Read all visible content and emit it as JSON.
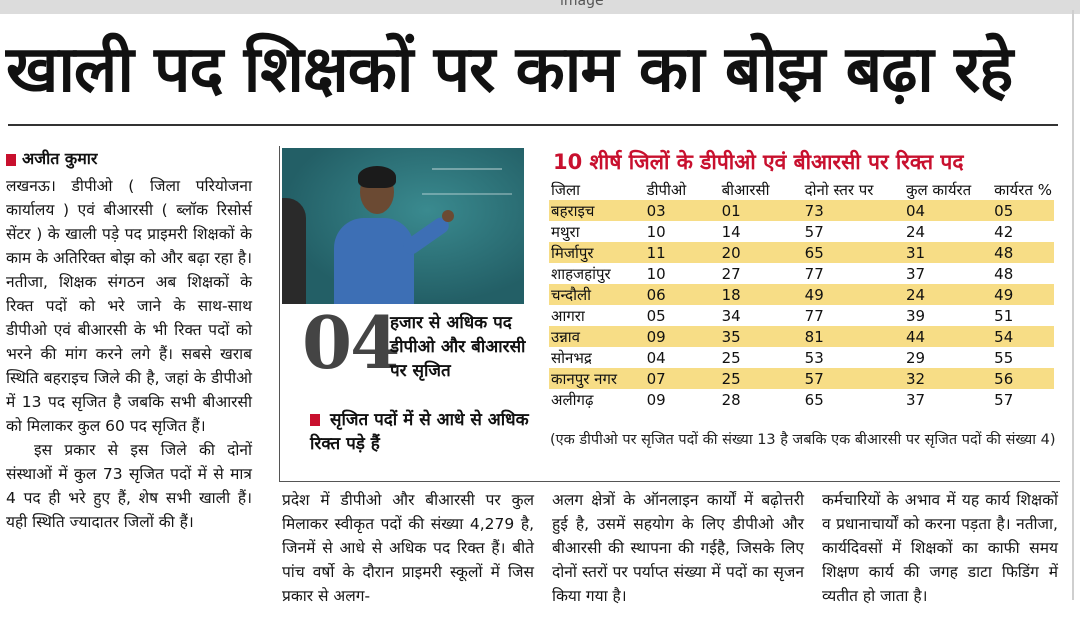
{
  "top_bar": {
    "text": "image"
  },
  "headline": "खाली पद शिक्षकों पर काम का बोझ बढ़ा रहे",
  "byline": "अजीत कुमार",
  "body": {
    "col1_p1": "लखनऊ। डीपीओ ( जिला परियोजना कार्यालय ) एवं बीआरसी ( ब्लॉक रिसोर्स सेंटर ) के खाली पड़े पद प्राइमरी शिक्षकों के काम के अतिरिक्त बोझ को और बढ़ा रहा है। नतीजा, शिक्षक संगठन अब शिक्षकों के रिक्त पदों को भरे जाने के साथ-साथ डीपीओ एवं बीआरसी के भी रिक्त पदों को भरने की मांग करने लगे हैं। सबसे खराब स्थिति बहराइच जिले की है, जहां के डीपीओ में 13 पद सृजित है जबकि सभी बीआरसी को मिलाकर कुल 60 पद सृजित हैं।",
    "col1_p2": "इस प्रकार से इस जिले की दोनों संस्थाओं में कुल 73 सृजित पदों में से मात्र 4 पद ही भरे हुए हैं, शेष सभी खाली हैं। यही स्थिति ज्यादातर जिलों की हैं।",
    "col2": "प्रदेश में डीपीओ और बीआरसी पर कुल मिलाकर स्वीकृत पदों की संख्या 4,279 है, जिनमें से आधे से अधिक पद रिक्त हैं। बीते पांच वर्षो के दौरान प्राइमरी स्कूलों में जिस प्रकार से अलग-",
    "col3": "अलग क्षेत्रों के ऑनलाइन कार्यों में बढ़ोत्तरी हुई है, उसमें सहयोग के लिए डीपीओ और बीआरसी की स्थापना की गईहै, जिसके लिए दोनों स्तरों पर पर्याप्त संख्या में पदों का सृजन किया गया है।",
    "col4": "कर्मचारियों के अभाव में यह कार्य शिक्षकों व प्रधानाचार्यों को करना पड़ता है। नतीजा, कार्यदिवसों में शिक्षकों का काफी समय शिक्षण कार्य की जगह डाटा फिडिंग में व्यतीत हो जाता है।"
  },
  "highlight": {
    "number": "04",
    "text": "हजार से अधिक पद डीपीओ और बीआरसी पर सृजित",
    "bullet": "सृजित पदों में से आधे से अधिक रिक्त पड़े हैं"
  },
  "table": {
    "title": "10 शीर्ष जिलों के डीपीओ एवं बीआरसी पर रिक्त पद",
    "headers": [
      "जिला",
      "डीपीओ",
      "बीआरसी",
      "दोनो स्तर पर",
      "कुल कार्यरत",
      "कार्यरत %"
    ],
    "rows": [
      [
        "बहराइच",
        "03",
        "01",
        "73",
        "04",
        "05"
      ],
      [
        "मथुरा",
        "10",
        "14",
        "57",
        "24",
        "42"
      ],
      [
        "मिर्जापुर",
        "11",
        "20",
        "65",
        "31",
        "48"
      ],
      [
        "शाहजहांपुर",
        "10",
        "27",
        "77",
        "37",
        "48"
      ],
      [
        "चन्दौली",
        "06",
        "18",
        "49",
        "24",
        "49"
      ],
      [
        "आगरा",
        "05",
        "34",
        "77",
        "39",
        "51"
      ],
      [
        "उन्नाव",
        "09",
        "35",
        "81",
        "44",
        "54"
      ],
      [
        "सोनभद्र",
        "04",
        "25",
        "53",
        "29",
        "55"
      ],
      [
        "कानपुर नगर",
        "07",
        "25",
        "57",
        "32",
        "56"
      ],
      [
        "अलीगढ़",
        "09",
        "28",
        "65",
        "37",
        "57"
      ]
    ],
    "highlight_color": "#f7dd86",
    "note": "(एक डीपीओ पर सृजित पदों की संख्या 13 है जबकि एक बीआरसी पर सृजित पदों की संख्या 4)"
  },
  "colors": {
    "accent": "#c8102e",
    "title_red": "#c8102e"
  }
}
